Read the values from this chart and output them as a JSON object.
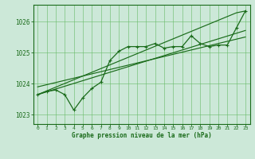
{
  "x_hours": [
    0,
    1,
    2,
    3,
    4,
    5,
    6,
    7,
    8,
    9,
    10,
    11,
    12,
    13,
    14,
    15,
    16,
    17,
    18,
    19,
    20,
    21,
    22,
    23
  ],
  "pressure_main": [
    1023.65,
    1023.75,
    1023.8,
    1023.65,
    1023.15,
    1023.55,
    1023.85,
    1024.05,
    1024.75,
    1025.05,
    1025.2,
    1025.2,
    1025.2,
    1025.3,
    1025.15,
    1025.2,
    1025.2,
    1025.55,
    1025.3,
    1025.2,
    1025.25,
    1025.25,
    1025.8,
    1026.35
  ],
  "line_smooth1": [
    1023.65,
    1023.77,
    1023.89,
    1024.01,
    1024.13,
    1024.25,
    1024.37,
    1024.49,
    1024.61,
    1024.73,
    1024.85,
    1024.97,
    1025.09,
    1025.21,
    1025.33,
    1025.45,
    1025.57,
    1025.69,
    1025.81,
    1025.93,
    1026.05,
    1026.17,
    1026.29,
    1026.35
  ],
  "line_smooth2": [
    1023.65,
    1023.74,
    1023.83,
    1023.92,
    1024.01,
    1024.1,
    1024.19,
    1024.28,
    1024.37,
    1024.46,
    1024.55,
    1024.64,
    1024.73,
    1024.82,
    1024.91,
    1025.0,
    1025.09,
    1025.18,
    1025.27,
    1025.36,
    1025.45,
    1025.54,
    1025.63,
    1025.72
  ],
  "line_smooth3": [
    1023.9,
    1023.97,
    1024.04,
    1024.11,
    1024.18,
    1024.25,
    1024.32,
    1024.39,
    1024.46,
    1024.53,
    1024.6,
    1024.67,
    1024.74,
    1024.81,
    1024.88,
    1024.95,
    1025.02,
    1025.09,
    1025.16,
    1025.23,
    1025.3,
    1025.37,
    1025.44,
    1025.51
  ],
  "bg_color": "#cce8d8",
  "line_color": "#1a6b1a",
  "grid_color": "#66bb66",
  "xlabel": "Graphe pression niveau de la mer (hPa)",
  "ylim": [
    1022.7,
    1026.55
  ],
  "xlim": [
    -0.5,
    23.5
  ],
  "yticks": [
    1023,
    1024,
    1025,
    1026
  ],
  "xticks": [
    0,
    1,
    2,
    3,
    4,
    5,
    6,
    7,
    8,
    9,
    10,
    11,
    12,
    13,
    14,
    15,
    16,
    17,
    18,
    19,
    20,
    21,
    22,
    23
  ]
}
